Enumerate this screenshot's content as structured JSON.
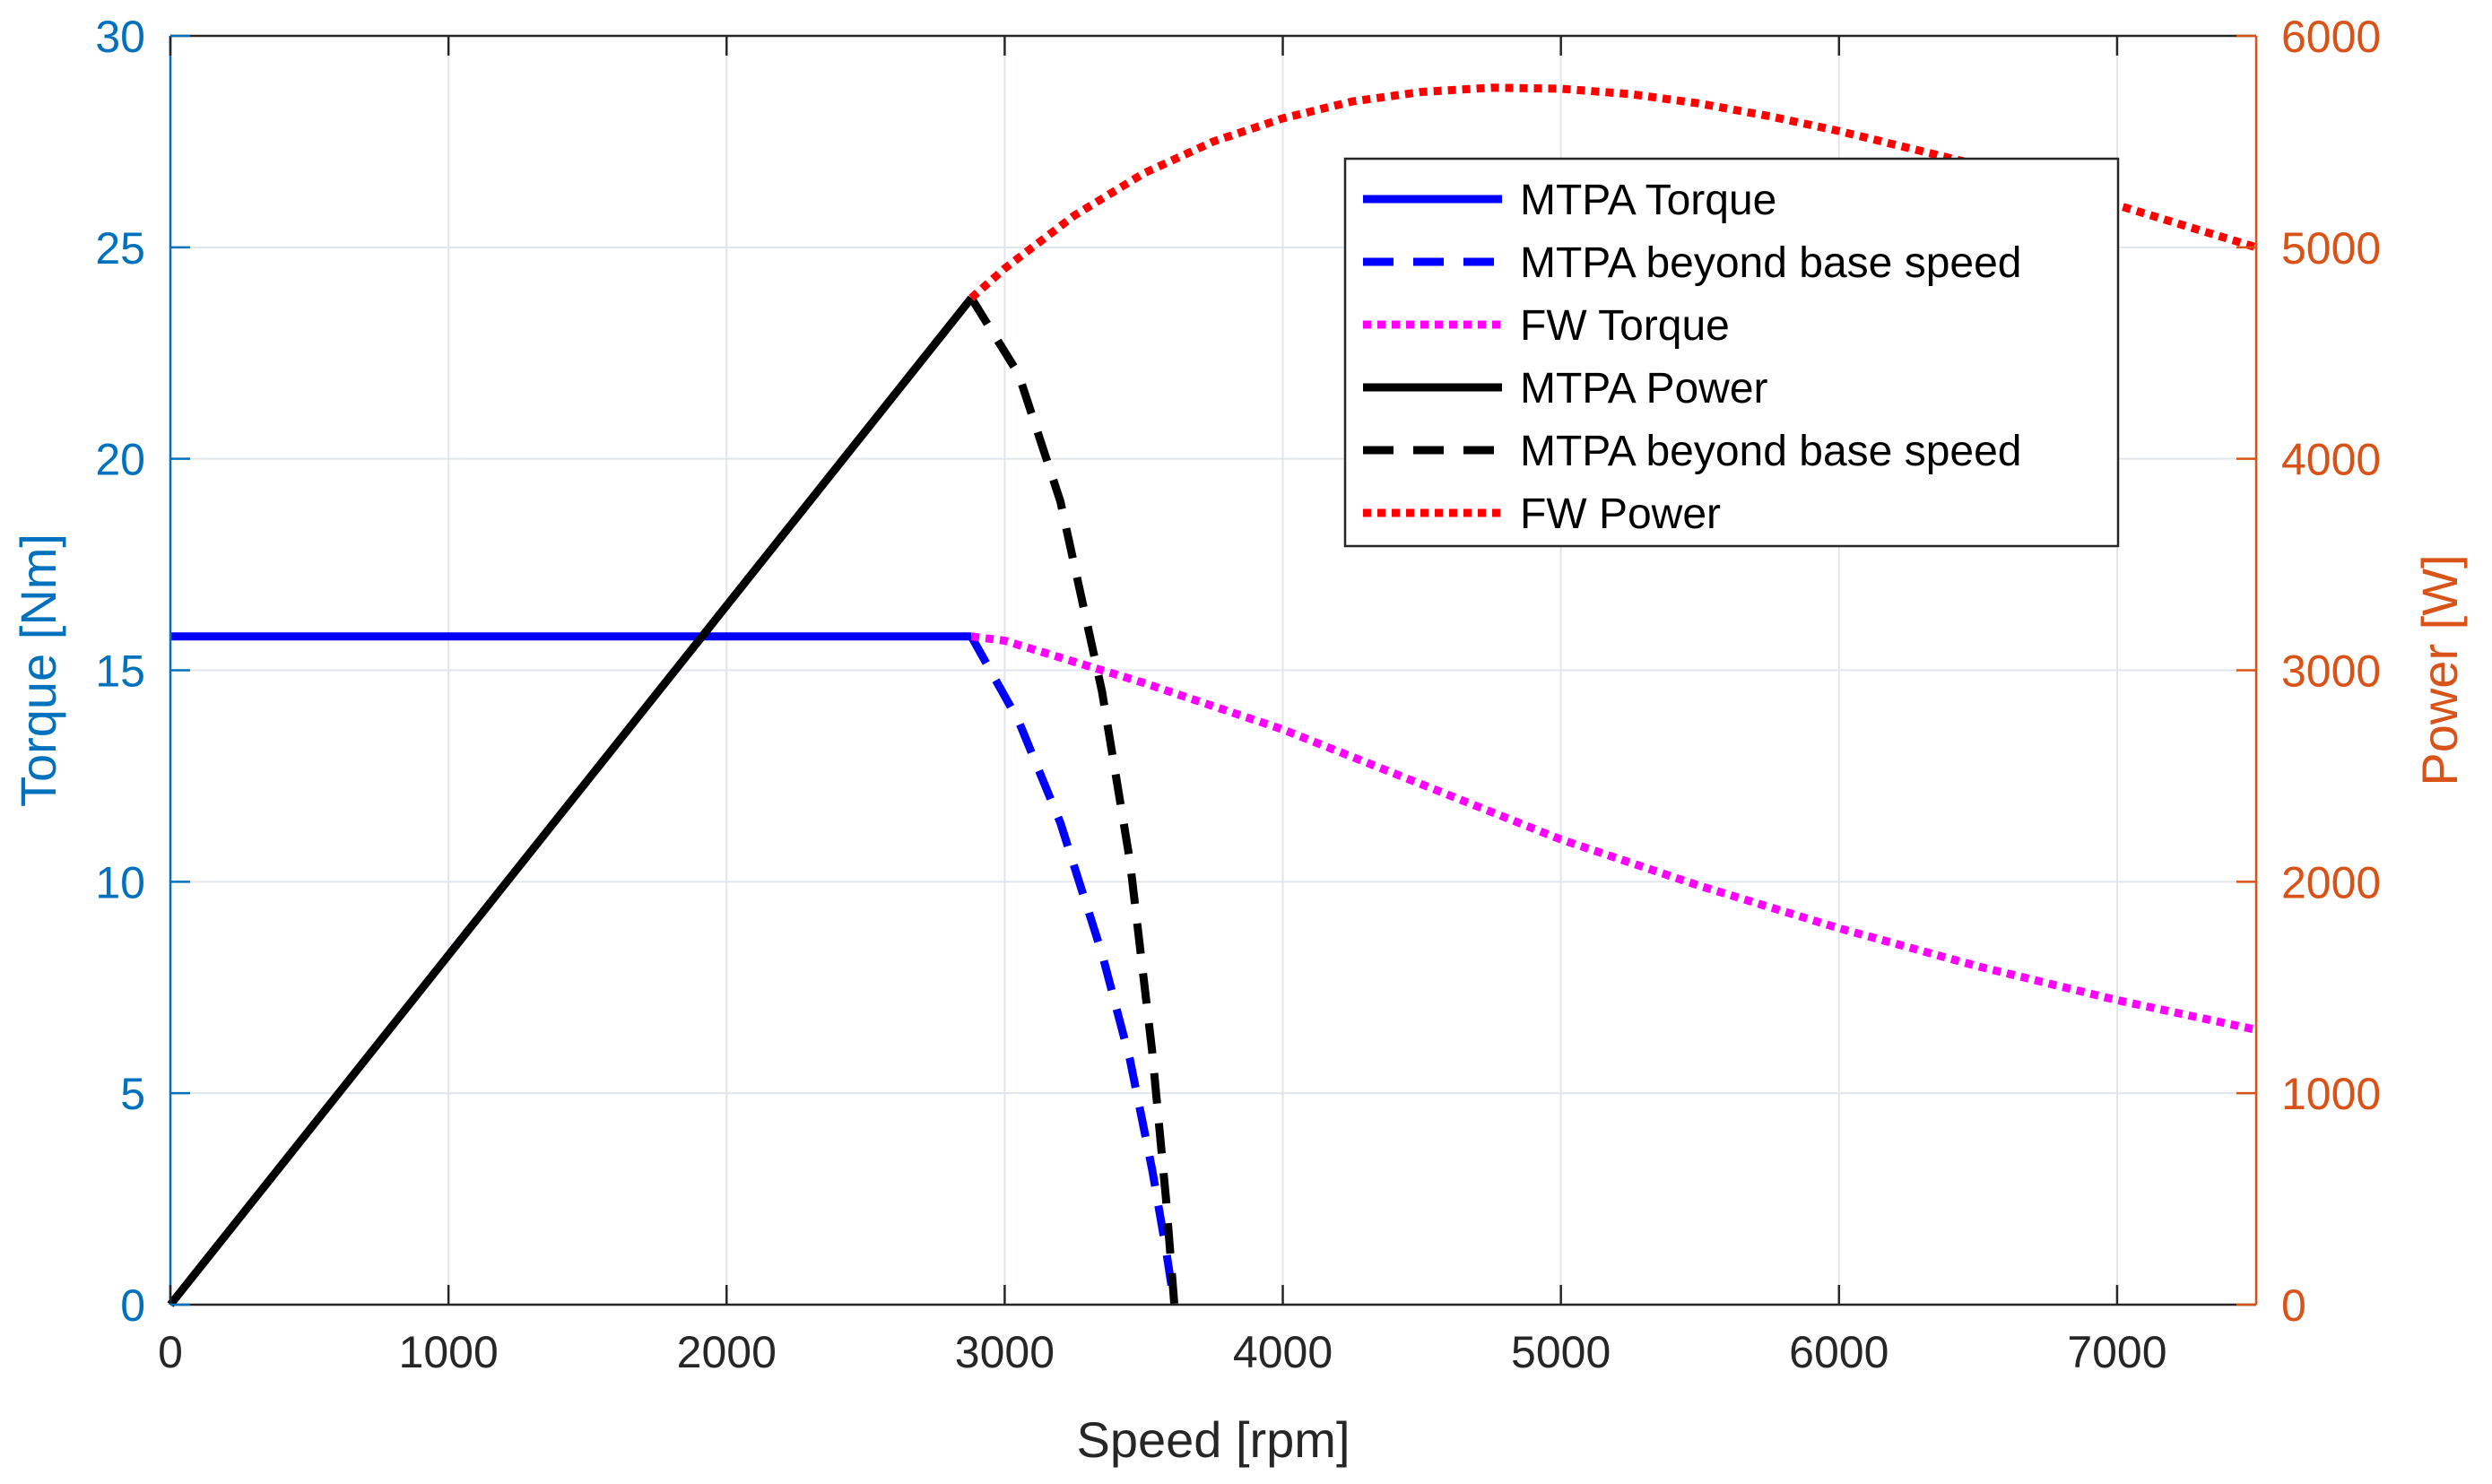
{
  "chart_data": {
    "type": "line",
    "xlabel": "Speed [rpm]",
    "ylabel_left": "Torque [Nm]",
    "ylabel_right": "Power [W]",
    "xlim": [
      0,
      7500
    ],
    "ylim_left": [
      0,
      30
    ],
    "ylim_right": [
      0,
      6000
    ],
    "x_ticks": [
      "0",
      "1000",
      "2000",
      "3000",
      "4000",
      "5000",
      "6000",
      "7000"
    ],
    "x_tick_values": [
      0,
      1000,
      2000,
      3000,
      4000,
      5000,
      6000,
      7000
    ],
    "y_left_ticks": [
      "0",
      "5",
      "10",
      "15",
      "20",
      "25",
      "30"
    ],
    "y_left_tick_values": [
      0,
      5,
      10,
      15,
      20,
      25,
      30
    ],
    "y_right_ticks": [
      "0",
      "1000",
      "2000",
      "3000",
      "4000",
      "5000",
      "6000"
    ],
    "y_right_tick_values": [
      0,
      1000,
      2000,
      3000,
      4000,
      5000,
      6000
    ],
    "grid": true,
    "legend_position": "top-right",
    "colors": {
      "left_axis": "#0072BD",
      "right_axis": "#D95319",
      "mtpa_torque": "#0000FF",
      "fw_torque": "#FF00FF",
      "power": "#000000",
      "fw_power": "#FF0000",
      "grid": "#E1E6EC"
    },
    "series": [
      {
        "name": "MTPA Torque",
        "axis": "left",
        "color": "#0000FF",
        "style": "solid",
        "x": [
          0,
          2880
        ],
        "y": [
          15.8,
          15.8
        ]
      },
      {
        "name": "MTPA beyond base speed",
        "axis": "left",
        "color": "#0000FF",
        "style": "dashed",
        "x": [
          2880,
          3050,
          3200,
          3350,
          3450,
          3530,
          3580,
          3610
        ],
        "y": [
          15.8,
          13.8,
          11.4,
          8.3,
          5.8,
          3.2,
          1.3,
          0
        ]
      },
      {
        "name": "FW Torque",
        "axis": "left",
        "color": "#FF00FF",
        "style": "dotted",
        "x": [
          2880,
          3000,
          3500,
          4000,
          4500,
          5000,
          5500,
          6000,
          6500,
          7000,
          7500
        ],
        "y": [
          15.8,
          15.7,
          14.7,
          13.6,
          12.3,
          11.0,
          9.9,
          8.9,
          8.0,
          7.2,
          6.5
        ]
      },
      {
        "name": "MTPA Power",
        "axis": "right",
        "color": "#000000",
        "style": "solid",
        "x": [
          0,
          2880
        ],
        "y": [
          0,
          4760
        ]
      },
      {
        "name": "MTPA beyond base speed",
        "axis": "right",
        "color": "#000000",
        "style": "dashed",
        "x": [
          2880,
          3050,
          3200,
          3350,
          3450,
          3530,
          3580,
          3610
        ],
        "y": [
          4760,
          4400,
          3800,
          2900,
          2100,
          1200,
          500,
          0
        ]
      },
      {
        "name": "FW Power",
        "axis": "right",
        "color": "#FF0000",
        "style": "dotted",
        "x": [
          2880,
          3000,
          3250,
          3500,
          3750,
          4000,
          4250,
          4500,
          4750,
          5000,
          5250,
          5500,
          5750,
          6000,
          6250,
          6500,
          6750,
          7000,
          7250,
          7500
        ],
        "y": [
          4760,
          4900,
          5150,
          5350,
          5500,
          5610,
          5690,
          5735,
          5755,
          5750,
          5725,
          5680,
          5620,
          5550,
          5470,
          5390,
          5300,
          5200,
          5100,
          5000
        ]
      }
    ]
  }
}
